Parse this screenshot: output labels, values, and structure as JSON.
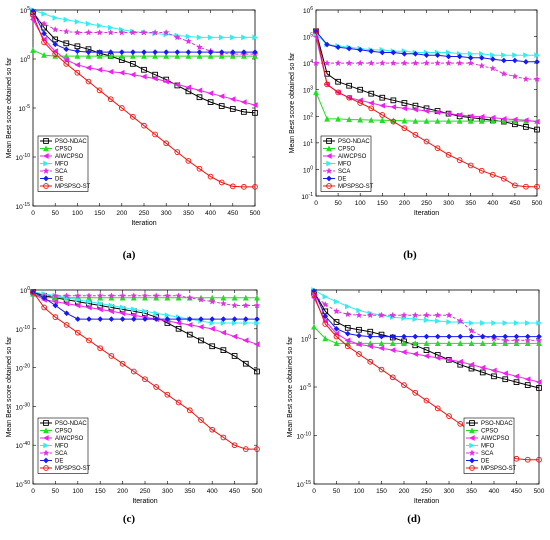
{
  "chart_data": [
    {
      "type": "line",
      "panel_label": "(a)",
      "xlabel": "Iteration",
      "ylabel": "Mean Best score obtained so far",
      "xlim": [
        0,
        500
      ],
      "ylim_log10": [
        -15,
        5
      ],
      "yscale": "log",
      "xticks": [
        "0",
        "50",
        "100",
        "150",
        "200",
        "250",
        "300",
        "350",
        "400",
        "450",
        "500"
      ],
      "yticks": [
        {
          "base": "10",
          "exp": "5",
          "v": 5
        },
        {
          "base": "10",
          "exp": "0",
          "v": 0
        },
        {
          "base": "10",
          "exp": "-5",
          "v": -5
        },
        {
          "base": "10",
          "exp": "-10",
          "v": -10
        },
        {
          "base": "10",
          "exp": "-15",
          "v": -15
        }
      ],
      "legend_position": "bottom-left",
      "x": [
        0,
        25,
        50,
        75,
        100,
        125,
        150,
        175,
        200,
        225,
        250,
        275,
        300,
        325,
        350,
        375,
        400,
        425,
        450,
        475,
        500
      ],
      "series": [
        {
          "name": "PSO-NDAC",
          "log10_values": [
            4.8,
            3.2,
            2.0,
            1.6,
            1.3,
            1.0,
            0.6,
            0.3,
            -0.1,
            -0.5,
            -1.1,
            -1.6,
            -2.1,
            -2.7,
            -3.3,
            -3.9,
            -4.4,
            -4.8,
            -5.1,
            -5.4,
            -5.5
          ]
        },
        {
          "name": "CPSO",
          "log10_values": [
            0.9,
            0.4,
            0.3,
            0.3,
            0.3,
            0.3,
            0.3,
            0.3,
            0.3,
            0.3,
            0.3,
            0.3,
            0.3,
            0.3,
            0.3,
            0.3,
            0.3,
            0.3,
            0.3,
            0.3,
            0.3
          ]
        },
        {
          "name": "AIWCPSO",
          "log10_values": [
            4.0,
            2.0,
            0.8,
            -0.1,
            -0.6,
            -0.9,
            -1.1,
            -1.3,
            -1.4,
            -1.6,
            -1.8,
            -2.0,
            -2.3,
            -2.6,
            -2.9,
            -3.2,
            -3.5,
            -3.8,
            -4.1,
            -4.4,
            -4.7
          ]
        },
        {
          "name": "MFO",
          "log10_values": [
            5.0,
            4.6,
            4.2,
            4.0,
            3.8,
            3.6,
            3.4,
            3.2,
            3.0,
            2.8,
            2.7,
            2.6,
            2.5,
            2.4,
            2.3,
            2.2,
            2.2,
            2.2,
            2.2,
            2.2,
            2.2
          ]
        },
        {
          "name": "SCA",
          "log10_values": [
            4.3,
            3.6,
            3.0,
            2.8,
            2.7,
            2.7,
            2.7,
            2.7,
            2.7,
            2.7,
            2.7,
            2.7,
            2.7,
            2.2,
            1.8,
            1.2,
            0.8,
            0.6,
            0.5,
            0.5,
            0.5
          ]
        },
        {
          "name": "DE",
          "log10_values": [
            4.9,
            2.6,
            1.5,
            1.0,
            0.8,
            0.7,
            0.7,
            0.7,
            0.7,
            0.7,
            0.7,
            0.7,
            0.7,
            0.7,
            0.7,
            0.7,
            0.7,
            0.7,
            0.7,
            0.7,
            0.7
          ]
        },
        {
          "name": "MPSPSO-ST",
          "log10_values": [
            4.5,
            1.7,
            0.5,
            -0.5,
            -1.4,
            -2.3,
            -3.2,
            -4.1,
            -5.0,
            -5.9,
            -6.8,
            -7.7,
            -8.6,
            -9.5,
            -10.4,
            -11.2,
            -12.0,
            -12.6,
            -13.0,
            -13.05,
            -13.05
          ]
        }
      ]
    },
    {
      "type": "line",
      "panel_label": "(b)",
      "xlabel": "Iteration",
      "ylabel": "Mean Best score obtained so far",
      "xlim": [
        0,
        500
      ],
      "ylim_log10": [
        -1,
        6
      ],
      "yscale": "log",
      "xticks": [
        "0",
        "50",
        "100",
        "150",
        "200",
        "250",
        "300",
        "350",
        "400",
        "450",
        "500"
      ],
      "yticks": [
        {
          "base": "10",
          "exp": "6",
          "v": 6
        },
        {
          "base": "10",
          "exp": "5",
          "v": 5
        },
        {
          "base": "10",
          "exp": "4",
          "v": 4
        },
        {
          "base": "10",
          "exp": "3",
          "v": 3
        },
        {
          "base": "10",
          "exp": "2",
          "v": 2
        },
        {
          "base": "10",
          "exp": "1",
          "v": 1
        },
        {
          "base": "10",
          "exp": "0",
          "v": 0
        },
        {
          "base": "10",
          "exp": "-1",
          "v": -1
        }
      ],
      "legend_position": "bottom-left",
      "x": [
        0,
        25,
        50,
        75,
        100,
        125,
        150,
        175,
        200,
        225,
        250,
        275,
        300,
        325,
        350,
        375,
        400,
        425,
        450,
        475,
        500
      ],
      "series": [
        {
          "name": "PSO-NDAC",
          "log10_values": [
            5.2,
            3.6,
            3.3,
            3.15,
            3.0,
            2.85,
            2.7,
            2.6,
            2.5,
            2.4,
            2.3,
            2.2,
            2.1,
            2.0,
            1.95,
            1.9,
            1.85,
            1.8,
            1.7,
            1.6,
            1.5
          ]
        },
        {
          "name": "CPSO",
          "log10_values": [
            2.9,
            1.9,
            1.9,
            1.88,
            1.87,
            1.86,
            1.85,
            1.84,
            1.83,
            1.82,
            1.82,
            1.82,
            1.82,
            1.82,
            1.82,
            1.82,
            1.82,
            1.82,
            1.82,
            1.82,
            1.82
          ]
        },
        {
          "name": "AIWCPSO",
          "log10_values": [
            5.0,
            3.2,
            2.9,
            2.7,
            2.6,
            2.5,
            2.4,
            2.35,
            2.3,
            2.25,
            2.2,
            2.15,
            2.1,
            2.05,
            2.0,
            1.98,
            1.95,
            1.9,
            1.88,
            1.85,
            1.8
          ]
        },
        {
          "name": "MFO",
          "log10_values": [
            5.1,
            4.7,
            4.65,
            4.6,
            4.55,
            4.5,
            4.5,
            4.45,
            4.45,
            4.4,
            4.4,
            4.4,
            4.4,
            4.35,
            4.35,
            4.35,
            4.3,
            4.3,
            4.3,
            4.3,
            4.3
          ]
        },
        {
          "name": "SCA",
          "log10_values": [
            4.0,
            4.0,
            4.0,
            4.0,
            4.0,
            4.0,
            4.0,
            4.0,
            4.0,
            4.0,
            4.0,
            4.0,
            4.0,
            4.0,
            4.0,
            3.9,
            3.8,
            3.6,
            3.5,
            3.4,
            3.4
          ]
        },
        {
          "name": "DE",
          "log10_values": [
            5.2,
            4.7,
            4.6,
            4.55,
            4.5,
            4.45,
            4.4,
            4.4,
            4.35,
            4.35,
            4.3,
            4.3,
            4.25,
            4.25,
            4.2,
            4.2,
            4.15,
            4.1,
            4.1,
            4.05,
            4.05
          ]
        },
        {
          "name": "MPSPSO-ST",
          "log10_values": [
            5.2,
            3.2,
            2.9,
            2.7,
            2.5,
            2.3,
            2.05,
            1.8,
            1.55,
            1.3,
            1.05,
            0.8,
            0.55,
            0.35,
            0.15,
            -0.05,
            -0.2,
            -0.35,
            -0.6,
            -0.65,
            -0.65
          ]
        }
      ]
    },
    {
      "type": "line",
      "panel_label": "(c)",
      "xlabel": "Iteration",
      "ylabel": "Mean Best score obtained so far",
      "xlim": [
        0,
        500
      ],
      "ylim_log10": [
        -50,
        0
      ],
      "yscale": "log",
      "xticks": [
        "0",
        "50",
        "100",
        "150",
        "200",
        "250",
        "300",
        "350",
        "400",
        "450",
        "500"
      ],
      "yticks": [
        {
          "base": "10",
          "exp": "0",
          "v": 0
        },
        {
          "base": "10",
          "exp": "-10",
          "v": -10
        },
        {
          "base": "10",
          "exp": "-20",
          "v": -20
        },
        {
          "base": "10",
          "exp": "-30",
          "v": -30
        },
        {
          "base": "10",
          "exp": "-40",
          "v": -40
        },
        {
          "base": "10",
          "exp": "-50",
          "v": -50
        }
      ],
      "legend_position": "bottom-left",
      "x": [
        0,
        25,
        50,
        75,
        100,
        125,
        150,
        175,
        200,
        225,
        250,
        275,
        300,
        325,
        350,
        375,
        400,
        425,
        450,
        475,
        500
      ],
      "series": [
        {
          "name": "PSO-NDAC",
          "log10_values": [
            -0.5,
            -1.5,
            -2.0,
            -2.5,
            -3.0,
            -3.5,
            -4.0,
            -4.5,
            -5.0,
            -5.5,
            -6.0,
            -7.0,
            -8.5,
            -10.0,
            -11.5,
            -13.0,
            -14.5,
            -15.5,
            -17.0,
            -19.0,
            -21.0
          ]
        },
        {
          "name": "CPSO",
          "log10_values": [
            -1.0,
            -2.0,
            -2.0,
            -2.0,
            -2.0,
            -2.0,
            -2.0,
            -2.0,
            -2.0,
            -2.0,
            -2.0,
            -2.0,
            -2.0,
            -2.0,
            -2.0,
            -2.0,
            -2.0,
            -2.0,
            -2.0,
            -2.0,
            -2.0
          ]
        },
        {
          "name": "AIWCPSO",
          "log10_values": [
            -1.0,
            -2.5,
            -3.0,
            -3.5,
            -4.0,
            -4.5,
            -5.0,
            -5.5,
            -6.0,
            -6.5,
            -7.0,
            -7.5,
            -8.0,
            -8.5,
            -9.0,
            -9.5,
            -10.0,
            -11.0,
            -12.0,
            -13.0,
            -14.0
          ]
        },
        {
          "name": "MFO",
          "log10_values": [
            -0.5,
            -1.0,
            -1.5,
            -2.0,
            -2.5,
            -3.0,
            -3.5,
            -4.0,
            -4.5,
            -5.0,
            -5.5,
            -6.0,
            -6.5,
            -7.0,
            -7.5,
            -8.0,
            -8.5,
            -8.5,
            -8.5,
            -8.5,
            -8.5
          ]
        },
        {
          "name": "SCA",
          "log10_values": [
            -1.0,
            -1.5,
            -1.5,
            -1.5,
            -1.5,
            -1.5,
            -1.5,
            -1.5,
            -1.5,
            -1.5,
            -1.5,
            -1.5,
            -1.5,
            -1.5,
            -2.0,
            -2.5,
            -3.0,
            -3.5,
            -4.0,
            -4.0,
            -4.0
          ]
        },
        {
          "name": "DE",
          "log10_values": [
            -0.5,
            -2.0,
            -4.0,
            -6.0,
            -7.5,
            -7.5,
            -7.5,
            -7.5,
            -7.5,
            -7.5,
            -7.5,
            -7.5,
            -7.5,
            -7.5,
            -7.5,
            -7.5,
            -7.5,
            -7.5,
            -7.5,
            -7.5,
            -7.5
          ]
        },
        {
          "name": "MPSPSO-ST",
          "log10_values": [
            -0.5,
            -4.5,
            -7.0,
            -9.0,
            -11.0,
            -13.0,
            -15.0,
            -17.0,
            -19.0,
            -21.0,
            -23.0,
            -25.0,
            -27.0,
            -29.0,
            -31.0,
            -33.5,
            -36.0,
            -38.0,
            -40.0,
            -41.0,
            -41.0
          ]
        }
      ]
    },
    {
      "type": "line",
      "panel_label": "(d)",
      "xlabel": "Iteration",
      "ylabel": "Mean Best score obtained so far",
      "xlim": [
        0,
        500
      ],
      "ylim_log10": [
        -15,
        5
      ],
      "yscale": "log",
      "xticks": [
        "0",
        "50",
        "100",
        "150",
        "200",
        "250",
        "300",
        "350",
        "400",
        "450",
        "500"
      ],
      "yticks": [
        {
          "base": "10",
          "exp": "0",
          "v": 0
        },
        {
          "base": "10",
          "exp": "-5",
          "v": -5
        },
        {
          "base": "10",
          "exp": "-10",
          "v": -10
        },
        {
          "base": "10",
          "exp": "-15",
          "v": -15
        }
      ],
      "legend_position": "bottom-right",
      "x": [
        0,
        25,
        50,
        75,
        100,
        125,
        150,
        175,
        200,
        225,
        250,
        275,
        300,
        325,
        350,
        375,
        400,
        425,
        450,
        475,
        500
      ],
      "series": [
        {
          "name": "PSO-NDAC",
          "log10_values": [
            4.8,
            2.8,
            1.7,
            1.1,
            0.9,
            0.7,
            0.4,
            0.1,
            -0.3,
            -0.7,
            -1.2,
            -1.7,
            -2.2,
            -2.7,
            -3.1,
            -3.5,
            -3.9,
            -4.2,
            -4.5,
            -4.8,
            -5.1
          ]
        },
        {
          "name": "CPSO",
          "log10_values": [
            1.2,
            0.0,
            -0.5,
            -0.5,
            -0.5,
            -0.5,
            -0.5,
            -0.5,
            -0.5,
            -0.5,
            -0.5,
            -0.5,
            -0.5,
            -0.5,
            -0.5,
            -0.5,
            -0.5,
            -0.5,
            -0.5,
            -0.5,
            -0.5
          ]
        },
        {
          "name": "AIWCPSO",
          "log10_values": [
            4.2,
            1.8,
            0.5,
            -0.2,
            -0.6,
            -0.8,
            -1.0,
            -1.2,
            -1.4,
            -1.6,
            -1.8,
            -2.0,
            -2.2,
            -2.4,
            -2.7,
            -3.0,
            -3.3,
            -3.6,
            -3.9,
            -4.2,
            -4.5
          ]
        },
        {
          "name": "MFO",
          "log10_values": [
            5.0,
            4.3,
            3.8,
            3.3,
            2.9,
            2.6,
            2.4,
            2.2,
            2.1,
            2.0,
            1.9,
            1.8,
            1.7,
            1.7,
            1.6,
            1.6,
            1.6,
            1.6,
            1.6,
            1.6,
            1.6
          ]
        },
        {
          "name": "SCA",
          "log10_values": [
            4.5,
            3.5,
            2.8,
            2.5,
            2.4,
            2.4,
            2.4,
            2.4,
            2.4,
            2.4,
            2.4,
            2.4,
            2.4,
            1.8,
            0.8,
            0.2,
            0.0,
            -0.2,
            -0.2,
            -0.2,
            -0.2
          ]
        },
        {
          "name": "DE",
          "log10_values": [
            4.9,
            2.3,
            1.0,
            0.5,
            0.3,
            0.2,
            0.2,
            0.2,
            0.2,
            0.2,
            0.2,
            0.2,
            0.2,
            0.2,
            0.2,
            0.2,
            0.2,
            0.2,
            0.2,
            0.2,
            0.2
          ]
        },
        {
          "name": "MPSPSO-ST",
          "log10_values": [
            4.5,
            1.5,
            0.2,
            -0.8,
            -1.6,
            -2.4,
            -3.2,
            -4.0,
            -4.8,
            -5.6,
            -6.4,
            -7.2,
            -8.0,
            -8.8,
            -9.6,
            -10.4,
            -11.2,
            -11.9,
            -12.4,
            -12.5,
            -12.5
          ]
        }
      ]
    }
  ],
  "series_styles": [
    {
      "name": "PSO-NDAC",
      "color": "#000000",
      "marker": "square"
    },
    {
      "name": "CPSO",
      "color": "#22dd22",
      "marker": "triangle-up"
    },
    {
      "name": "AIWCPSO",
      "color": "#ee22ee",
      "marker": "triangle-left"
    },
    {
      "name": "MFO",
      "color": "#33eeee",
      "marker": "triangle-right"
    },
    {
      "name": "SCA",
      "color": "#dd33dd",
      "marker": "star",
      "dashed": true
    },
    {
      "name": "DE",
      "color": "#1a1aee",
      "marker": "diamond"
    },
    {
      "name": "MPSPSO-ST",
      "color": "#ee1111",
      "marker": "circle"
    }
  ]
}
